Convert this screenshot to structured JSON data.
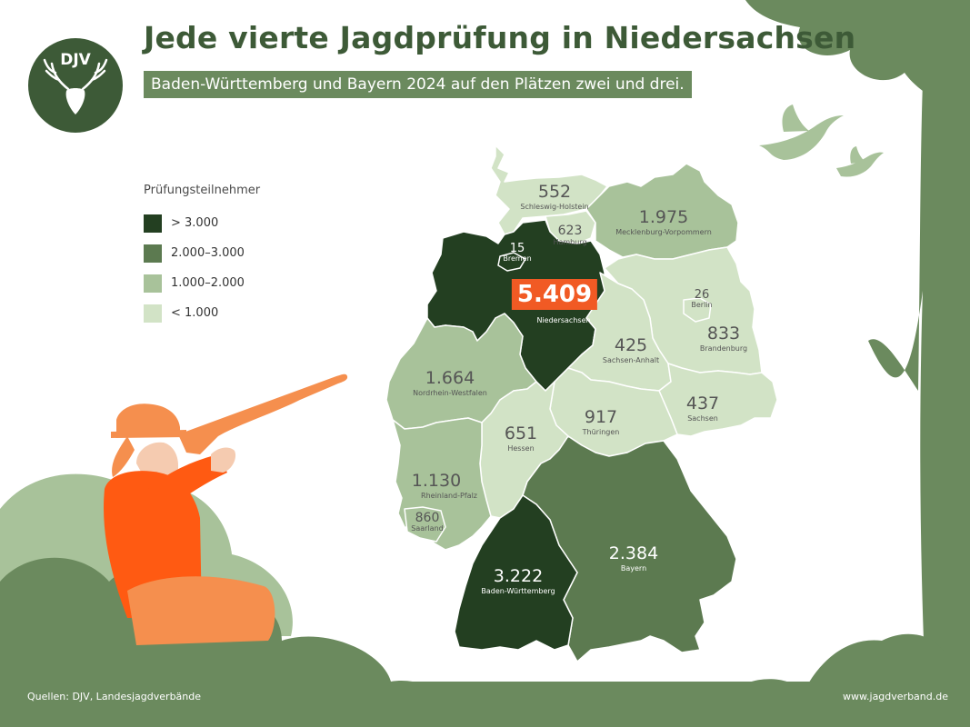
{
  "header": {
    "title": "Jede vierte Jagdprüfung in Niedersachsen",
    "subtitle": "Baden-Württemberg und Bayern 2024 auf den Plätzen zwei und drei."
  },
  "logo": {
    "text": "DJV",
    "icon": "deer-antler-icon"
  },
  "legend": {
    "title": "Prüfungsteilnehmer",
    "items": [
      {
        "label": "> 3.000",
        "color": "#233f21"
      },
      {
        "label": "2.000–3.000",
        "color": "#5c7a50"
      },
      {
        "label": "1.000–2.000",
        "color": "#a8c29a"
      },
      {
        "label": "< 1.000",
        "color": "#d2e3c6"
      }
    ]
  },
  "states": [
    {
      "name": "Schleswig-Holstein",
      "value": "552"
    },
    {
      "name": "Hamburg",
      "value": "623"
    },
    {
      "name": "Mecklenburg-Vorpommern",
      "value": "1.975"
    },
    {
      "name": "Bremen",
      "value": "15"
    },
    {
      "name": "Niedersachsen",
      "value": "5.409"
    },
    {
      "name": "Berlin",
      "value": "26"
    },
    {
      "name": "Brandenburg",
      "value": "833"
    },
    {
      "name": "Sachsen-Anhalt",
      "value": "425"
    },
    {
      "name": "Nordrhein-Westfalen",
      "value": "1.664"
    },
    {
      "name": "Sachsen",
      "value": "437"
    },
    {
      "name": "Hessen",
      "value": "651"
    },
    {
      "name": "Thüringen",
      "value": "917"
    },
    {
      "name": "Rheinland-Pfalz",
      "value": "1.130"
    },
    {
      "name": "Saarland",
      "value": "860"
    },
    {
      "name": "Baden-Württemberg",
      "value": "3.222"
    },
    {
      "name": "Bayern",
      "value": "2.384"
    }
  ],
  "footer": {
    "source": "Quellen: DJV, Landesjagdverbände",
    "url": "www.jagdverband.de"
  },
  "colors": {
    "dark_green": "#233f21",
    "mid_green": "#5c7a50",
    "light_green": "#a8c29a",
    "pale_green": "#d2e3c6",
    "brand_green": "#3d5a37",
    "accent_orange": "#f15a24"
  }
}
